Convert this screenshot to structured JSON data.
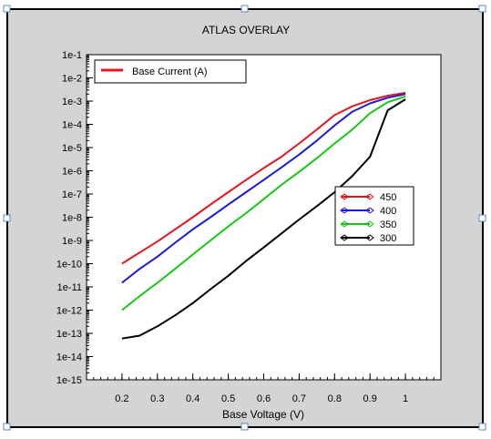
{
  "window": {
    "title": "ATLAS OVERLAY"
  },
  "colors": {
    "frame_bg": "#d4d4d4",
    "plot_bg": "#ffffff",
    "series_450": "#e8141c",
    "series_400": "#1a1ae0",
    "series_350": "#14c814",
    "series_300": "#000000"
  },
  "chart_data": {
    "type": "line",
    "title": "ATLAS OVERLAY",
    "xlabel": "Base Voltage (V)",
    "ylabel": "",
    "y_scale": "log",
    "xlim": [
      0.1,
      1.1
    ],
    "ylim": [
      1e-15,
      0.1
    ],
    "x_ticks": [
      0.2,
      0.3,
      0.4,
      0.5,
      0.6,
      0.7,
      0.8,
      0.9,
      1.0
    ],
    "x_tick_labels": [
      "0.2",
      "0.3",
      "0.4",
      "0.5",
      "0.6",
      "0.7",
      "0.8",
      "0.9",
      "1"
    ],
    "y_ticks": [
      1e-15,
      1e-14,
      1e-13,
      1e-12,
      1e-11,
      1e-10,
      1e-09,
      1e-08,
      1e-07,
      1e-06,
      1e-05,
      0.0001,
      0.001,
      0.01,
      0.1
    ],
    "y_tick_labels": [
      "1e-15",
      "1e-14",
      "1e-13",
      "1e-12",
      "1e-11",
      "1e-10",
      "1e-9",
      "1e-8",
      "1e-7",
      "1e-6",
      "1e-5",
      "1e-4",
      "1e-3",
      "1e-2",
      "1e-1"
    ],
    "grid": false,
    "legend_top": {
      "placement": "top-left",
      "label": "Base Current (A)",
      "color": "#e8141c"
    },
    "legend_series": {
      "placement": "right",
      "entries": [
        "450",
        "400",
        "350",
        "300"
      ]
    },
    "x": [
      0.2,
      0.25,
      0.3,
      0.35,
      0.4,
      0.45,
      0.5,
      0.55,
      0.6,
      0.65,
      0.7,
      0.75,
      0.8,
      0.85,
      0.9,
      0.95,
      1.0
    ],
    "series": [
      {
        "name": "450",
        "color": "#e8141c",
        "values": [
          1e-10,
          3e-10,
          9e-10,
          3e-09,
          1e-08,
          3.5e-08,
          1.2e-07,
          4e-07,
          1.3e-06,
          4e-06,
          1.5e-05,
          6e-05,
          0.00025,
          0.0006,
          0.0011,
          0.0017,
          0.0023
        ]
      },
      {
        "name": "400",
        "color": "#1a1ae0",
        "values": [
          1.5e-11,
          6e-11,
          2e-10,
          8e-10,
          3e-09,
          1e-08,
          3.5e-08,
          1.2e-07,
          4e-07,
          1.4e-06,
          5e-06,
          2e-05,
          9e-05,
          0.00035,
          0.0008,
          0.0014,
          0.002
        ]
      },
      {
        "name": "350",
        "color": "#14c814",
        "values": [
          1e-12,
          4e-12,
          1.5e-11,
          6e-11,
          2.5e-10,
          1e-09,
          4e-09,
          1.5e-08,
          6e-08,
          2.5e-07,
          9e-07,
          3.5e-06,
          1.5e-05,
          6e-05,
          0.0003,
          0.0009,
          0.0016
        ]
      },
      {
        "name": "300",
        "color": "#000000",
        "values": [
          6e-14,
          8e-14,
          2e-13,
          6e-13,
          2e-12,
          8e-12,
          3e-11,
          1.3e-10,
          5e-10,
          2e-09,
          8e-09,
          3e-08,
          1.2e-07,
          6e-07,
          4e-06,
          0.0004,
          0.0012
        ]
      }
    ]
  }
}
